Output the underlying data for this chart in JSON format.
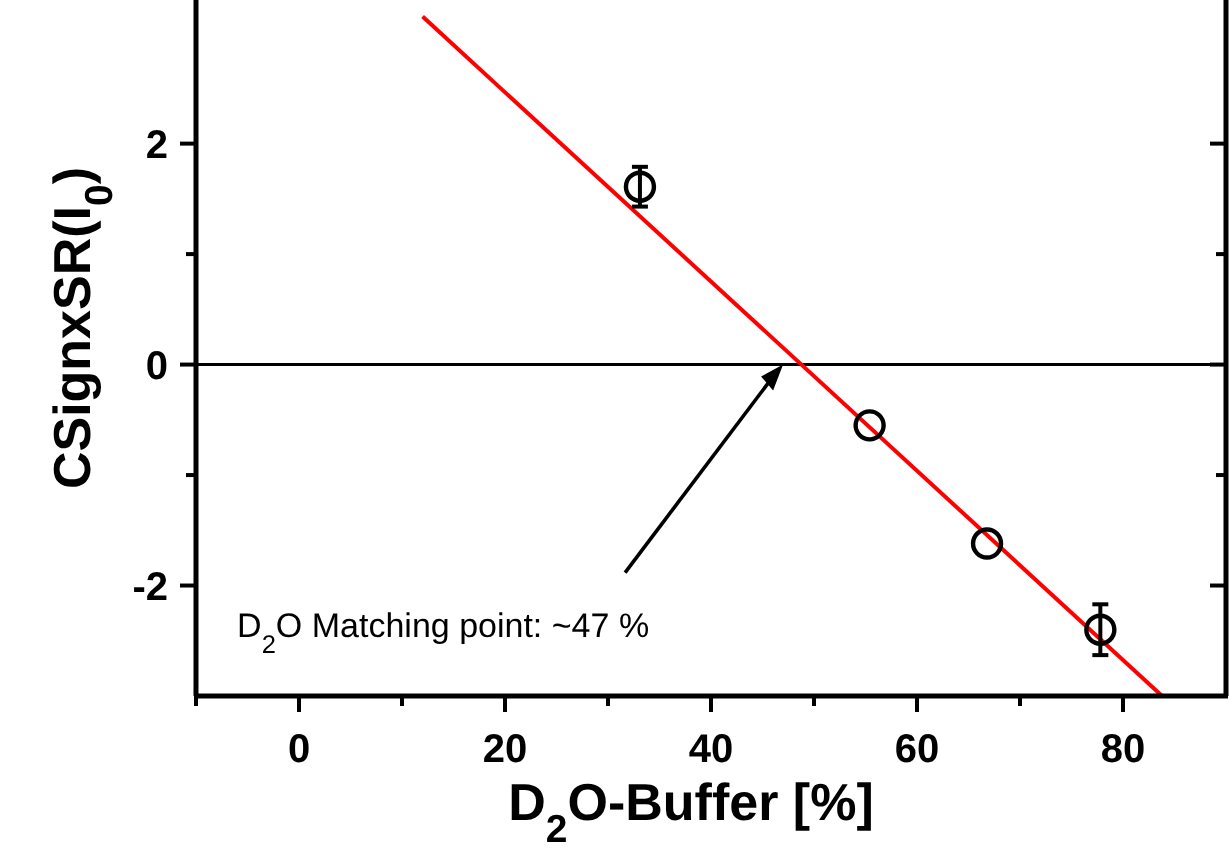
{
  "chart_data": {
    "type": "scatter",
    "xlabel": "D$_{2}$O-Buffer [%]",
    "ylabel": "CSignxSR(I$_{0}$)",
    "xlim": [
      -10,
      90
    ],
    "xticks": [
      0,
      20,
      40,
      60,
      80
    ],
    "ylim": [
      -3,
      3.3
    ],
    "yticks": [
      -2,
      0,
      2
    ],
    "series": [
      {
        "color": "#000000",
        "marker": "circle",
        "x": [
          33.1,
          55.4,
          66.8,
          77.8
        ],
        "values": [
          1.61,
          -0.55,
          -1.62,
          -2.4
        ],
        "errors": [
          0.18,
          null,
          null,
          0.23
        ]
      },
      {
        "type": "line",
        "color": "#ff0000",
        "line_style": "solid",
        "marker": "none",
        "x": [
          12,
          83.8
        ],
        "values": [
          3.15,
          -3
        ]
      }
    ],
    "ref_lines": [
      {
        "axis": "y",
        "value": 0,
        "color": "#000000"
      }
    ],
    "annotations": [
      {
        "text": "D$_{2}$O Matching point: ~47 %",
        "x": 47,
        "y": 0
      }
    ],
    "grid": false
  }
}
